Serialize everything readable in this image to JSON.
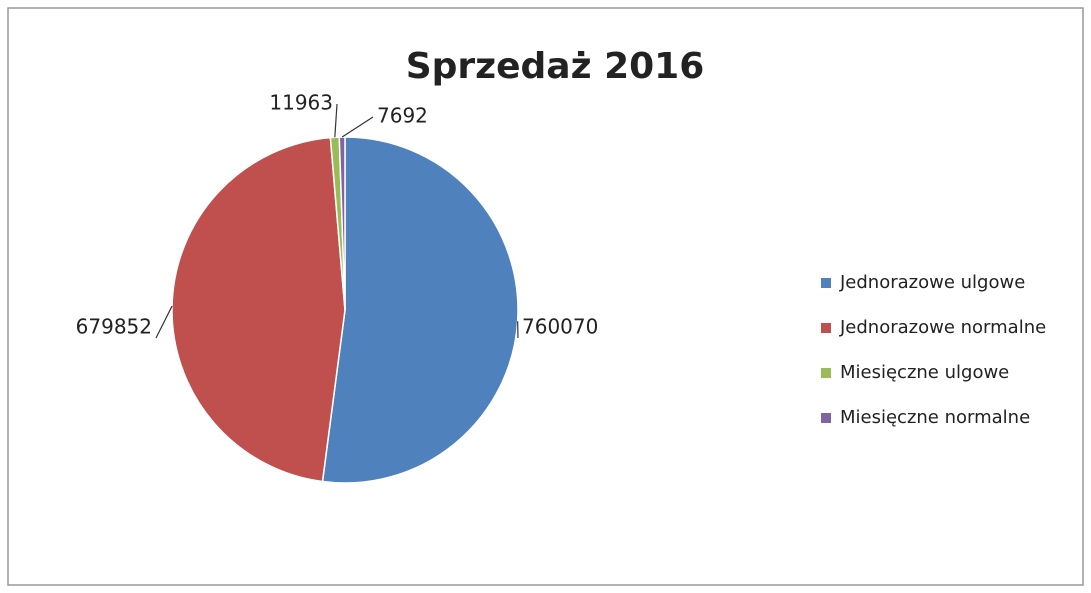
{
  "chart_data": {
    "type": "pie",
    "title": "Sprzedaż 2016",
    "categories": [
      "Jednorazowe ulgowe",
      "Jednorazowe normalne",
      "Miesięczne ulgowe",
      "Miesięczne normalne"
    ],
    "values": [
      760070,
      679852,
      11963,
      7692
    ],
    "colors": [
      "#4f81bd",
      "#c0504d",
      "#9bbb59",
      "#8064a2"
    ],
    "legend": "right"
  }
}
